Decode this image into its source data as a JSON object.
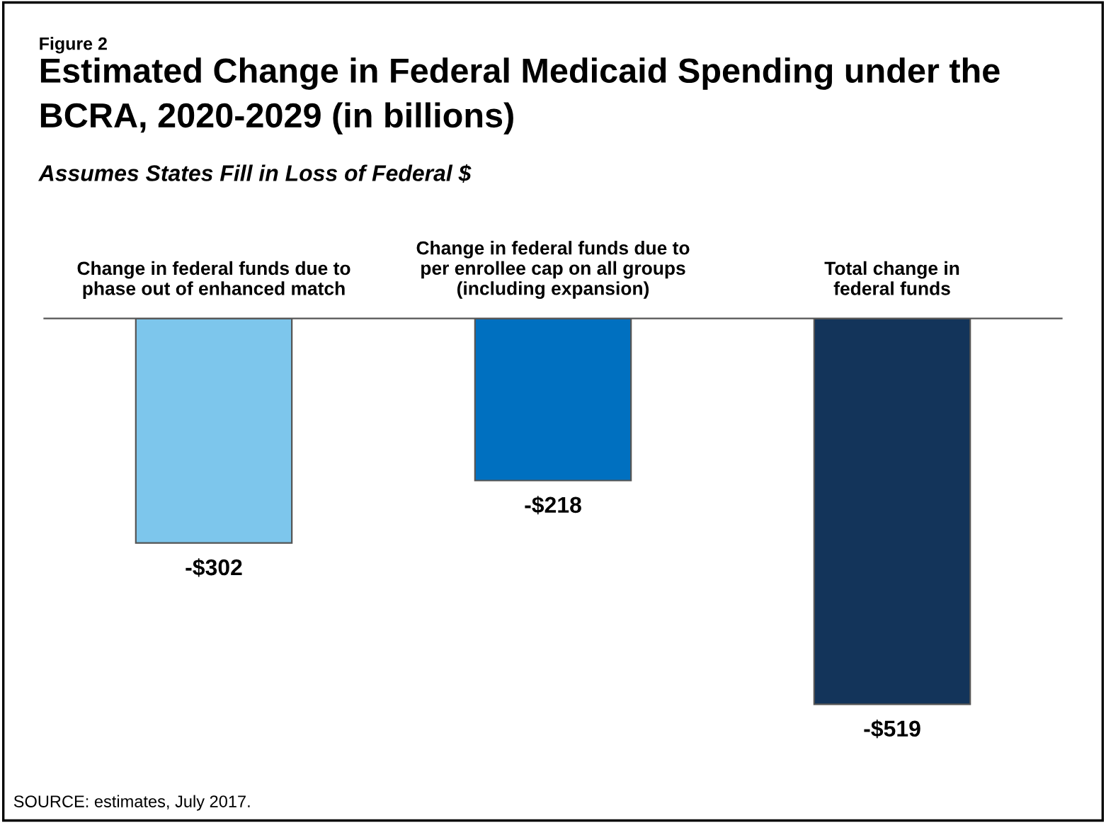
{
  "chart_data": {
    "type": "bar",
    "title": "Estimated Change in Federal Medicaid Spending under the BCRA, 2020-2029 (in billions)",
    "subtitle": "Assumes States Fill in Loss of Federal $",
    "categories": [
      "Change in federal funds due to\nphase out of enhanced match",
      "Change in federal funds due to\nper enrollee cap on all groups\n(including expansion)",
      "Total change in\nfederal funds"
    ],
    "values": [
      -302,
      -218,
      -519
    ],
    "colors": [
      "#7dc6ec",
      "#0070c0",
      "#13345a"
    ],
    "value_labels": [
      "-$302",
      "-$218",
      "-$519"
    ],
    "annotations": [
      "Figure 2",
      "SOURCE: estimates, July 2017."
    ]
  }
}
